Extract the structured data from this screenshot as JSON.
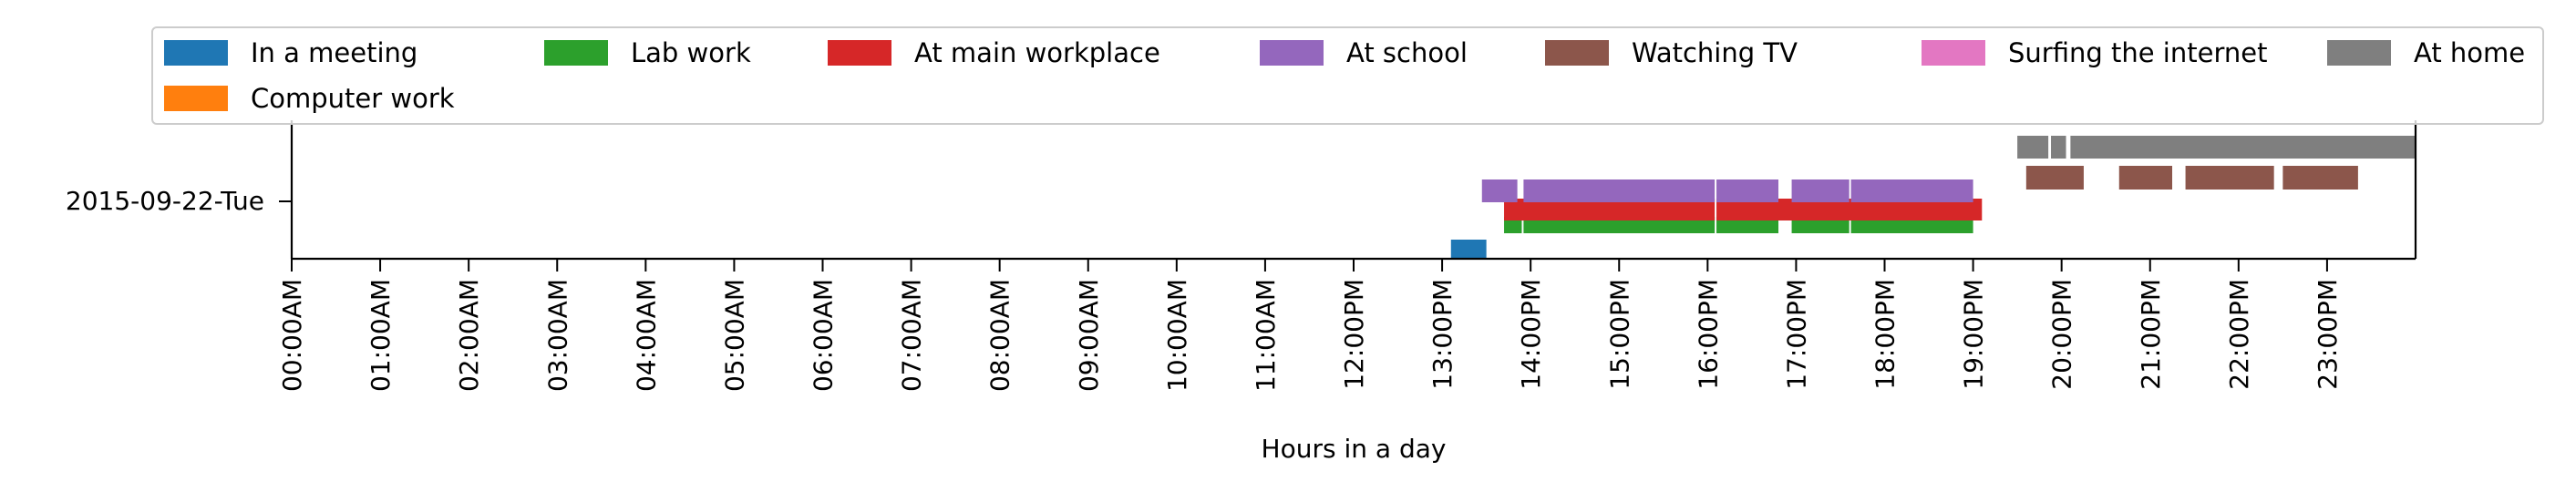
{
  "chart_data": {
    "type": "timeline",
    "title": "",
    "xlabel": "Hours in a day",
    "ylabel": "",
    "xlim_hours": [
      0,
      24
    ],
    "row_label": "2015-09-22-Tue",
    "x_tick_labels": [
      "00:00AM",
      "01:00AM",
      "02:00AM",
      "03:00AM",
      "04:00AM",
      "05:00AM",
      "06:00AM",
      "07:00AM",
      "08:00AM",
      "09:00AM",
      "10:00AM",
      "11:00AM",
      "12:00PM",
      "13:00PM",
      "14:00PM",
      "15:00PM",
      "16:00PM",
      "17:00PM",
      "18:00PM",
      "19:00PM",
      "20:00PM",
      "21:00PM",
      "22:00PM",
      "23:00PM"
    ],
    "legend": {
      "placement": "top",
      "entries": [
        {
          "name": "In a meeting",
          "color": "#1f77b4"
        },
        {
          "name": "Lab work",
          "color": "#2ca02c"
        },
        {
          "name": "At main workplace",
          "color": "#d62728"
        },
        {
          "name": "At school",
          "color": "#9467bd"
        },
        {
          "name": "Watching TV",
          "color": "#8c564b"
        },
        {
          "name": "Surfing the internet",
          "color": "#e377c2"
        },
        {
          "name": "At home",
          "color": "#7f7f7f"
        },
        {
          "name": "Computer work",
          "color": "#ff7f0e"
        }
      ]
    },
    "series": [
      {
        "name": "In a meeting",
        "color": "#1f77b4",
        "intervals": [
          [
            13.1,
            13.5
          ]
        ]
      },
      {
        "name": "Lab work",
        "color": "#2ca02c",
        "intervals": [
          [
            13.7,
            13.9
          ],
          [
            13.92,
            16.08
          ],
          [
            16.1,
            16.8
          ],
          [
            16.95,
            17.6
          ],
          [
            17.62,
            19.0
          ]
        ]
      },
      {
        "name": "At main workplace",
        "color": "#d62728",
        "intervals": [
          [
            13.7,
            16.08
          ],
          [
            16.1,
            19.1
          ]
        ]
      },
      {
        "name": "At school",
        "color": "#9467bd",
        "intervals": [
          [
            13.45,
            13.85
          ],
          [
            13.92,
            16.08
          ],
          [
            16.1,
            16.8
          ],
          [
            16.95,
            17.6
          ],
          [
            17.62,
            19.0
          ]
        ]
      },
      {
        "name": "Watching TV",
        "color": "#8c564b",
        "intervals": [
          [
            19.6,
            20.25
          ],
          [
            20.65,
            21.25
          ],
          [
            21.4,
            22.4
          ],
          [
            22.5,
            23.35
          ]
        ]
      },
      {
        "name": "At home",
        "color": "#7f7f7f",
        "intervals": [
          [
            19.5,
            19.85
          ],
          [
            19.88,
            20.05
          ],
          [
            20.1,
            24.0
          ]
        ]
      }
    ]
  }
}
